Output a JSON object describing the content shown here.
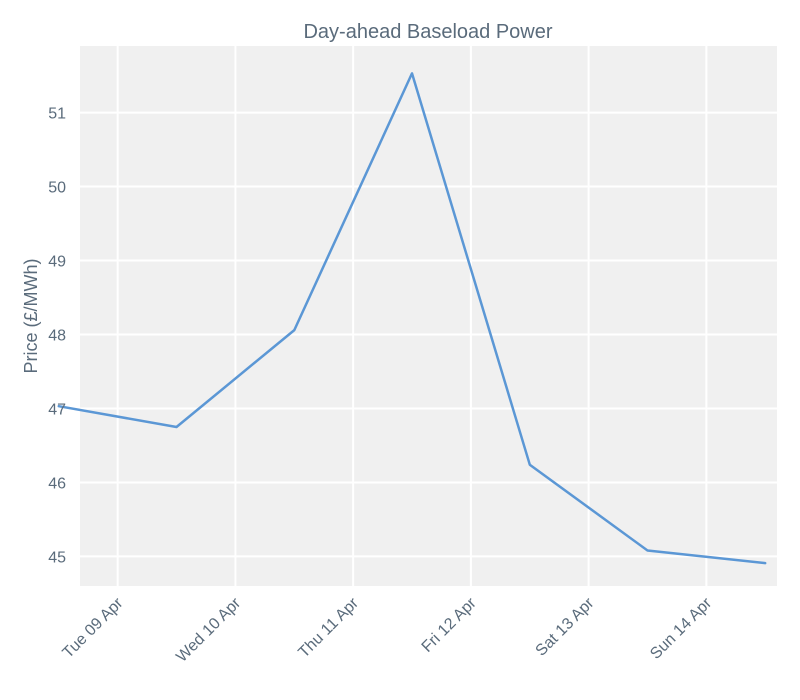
{
  "chart_data": {
    "type": "line",
    "title": "Day-ahead Baseload Power",
    "xlabel": "",
    "ylabel": "Price (£/MWh)",
    "x_tick_labels": [
      "Tue 09 Apr",
      "Wed 10 Apr",
      "Thu 11 Apr",
      "Fri 12 Apr",
      "Sat 13 Apr",
      "Sun 14 Apr"
    ],
    "y_ticks": [
      45,
      46,
      47,
      48,
      49,
      50,
      51
    ],
    "ylim": [
      44.6,
      51.9
    ],
    "x_unit": "days from 2024-04-08 00:00",
    "xlim": [
      7.68,
      13.6
    ],
    "x_tick_positions": [
      8,
      9,
      10,
      11,
      12,
      13
    ],
    "series": [
      {
        "color": "#5b97d5",
        "points": [
          {
            "x": 7.5,
            "y": 47.03
          },
          {
            "x": 8.5,
            "y": 46.75
          },
          {
            "x": 9.5,
            "y": 48.06
          },
          {
            "x": 10.5,
            "y": 51.53
          },
          {
            "x": 11.5,
            "y": 46.24
          },
          {
            "x": 12.5,
            "y": 45.08
          },
          {
            "x": 13.5,
            "y": 44.91
          }
        ]
      }
    ],
    "grid": true,
    "background": "#f0f0f0"
  }
}
